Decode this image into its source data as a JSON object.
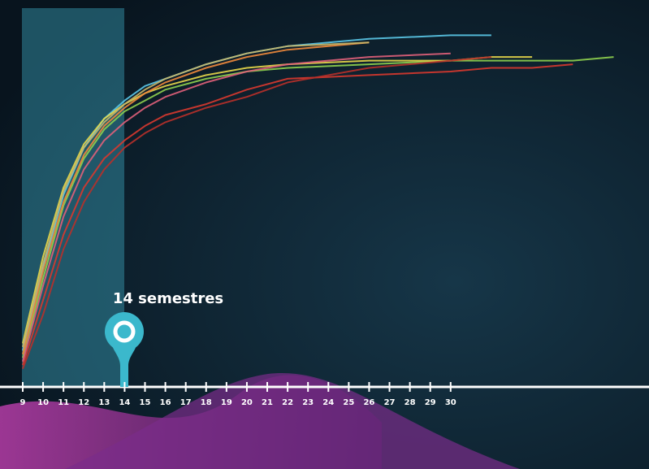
{
  "chart_data": {
    "type": "line",
    "annotation": "14 semestres",
    "x": [
      9,
      10,
      11,
      12,
      13,
      14,
      15,
      16,
      18,
      20,
      22,
      26,
      30,
      32,
      34,
      36,
      38
    ],
    "xlim": [
      9,
      38.5
    ],
    "xticks": [
      9,
      10,
      11,
      12,
      13,
      14,
      15,
      16,
      17,
      18,
      19,
      20,
      21,
      22,
      23,
      24,
      25,
      26,
      27,
      28,
      29,
      30
    ],
    "ylim": [
      0,
      100
    ],
    "series": [
      {
        "color": "#5bc8e8",
        "values": [
          10,
          33,
          53,
          66,
          74,
          79,
          83,
          85,
          89,
          92,
          94,
          96,
          97,
          97,
          null,
          null,
          null
        ]
      },
      {
        "color": "#8fd14f",
        "values": [
          8,
          30,
          50,
          63,
          71,
          76,
          79,
          82,
          85,
          87,
          88,
          89,
          90,
          90,
          90,
          90,
          91
        ]
      },
      {
        "color": "#d8392f",
        "values": [
          6,
          24,
          42,
          55,
          63,
          68,
          72,
          75,
          78,
          82,
          85,
          86,
          87,
          88,
          88,
          89,
          null
        ]
      },
      {
        "color": "#e8d84a",
        "values": [
          12,
          36,
          55,
          67,
          74,
          78,
          81,
          83,
          86,
          88,
          89,
          90,
          90,
          91,
          91,
          null,
          null
        ]
      },
      {
        "color": "#f08a3c",
        "values": [
          9,
          32,
          51,
          64,
          72,
          77,
          81,
          84,
          88,
          91,
          93,
          95,
          null,
          null,
          null,
          null,
          null
        ]
      },
      {
        "color": "#b8302a",
        "values": [
          5,
          20,
          38,
          51,
          60,
          66,
          70,
          73,
          77,
          80,
          84,
          88,
          90,
          91,
          null,
          null,
          null
        ]
      },
      {
        "color": "#e0607a",
        "values": [
          7,
          28,
          47,
          60,
          68,
          73,
          77,
          80,
          84,
          87,
          89,
          91,
          92,
          null,
          null,
          null,
          null
        ]
      },
      {
        "color": "#c9b86a",
        "values": [
          11,
          34,
          54,
          66,
          73,
          78,
          82,
          85,
          89,
          92,
          94,
          95,
          null,
          null,
          null,
          null,
          null
        ]
      }
    ]
  }
}
